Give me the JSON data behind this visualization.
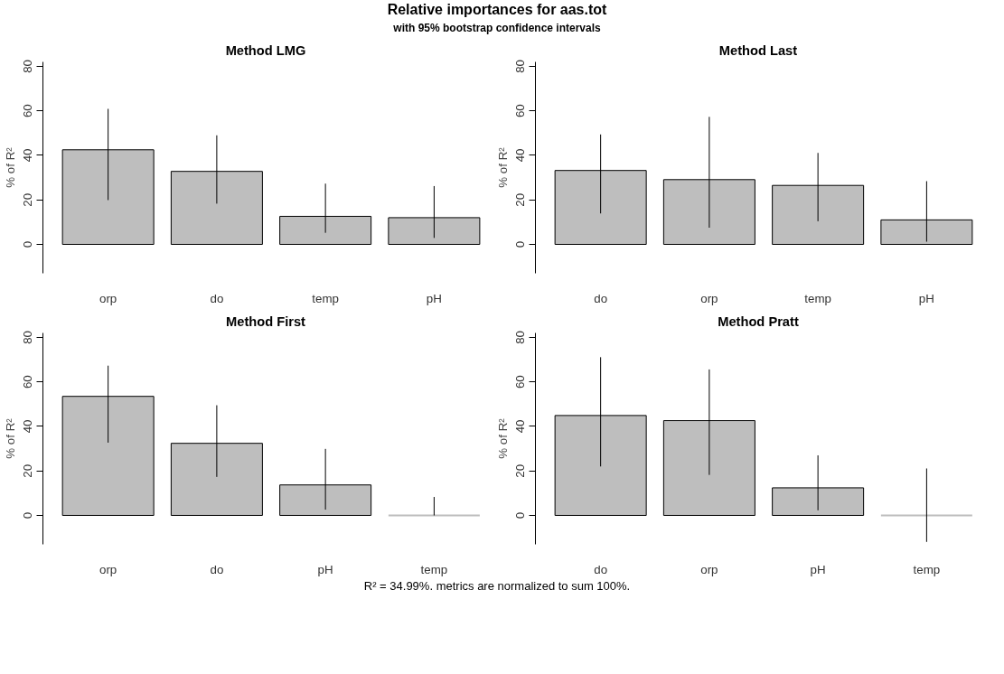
{
  "chart_data": [
    {
      "type": "bar",
      "title": "Method LMG",
      "ylabel": "% of R²",
      "categories": [
        "orp",
        "do",
        "temp",
        "pH"
      ],
      "values": [
        42.5,
        32.8,
        12.6,
        12.0
      ],
      "errors": [
        [
          19.9,
          60.9
        ],
        [
          18.3,
          49.0
        ],
        [
          5.2,
          27.3
        ],
        [
          2.9,
          26.2
        ]
      ],
      "color": "#bebebe",
      "ylim": [
        -13,
        82
      ],
      "yticks": [
        0,
        20,
        40,
        60,
        80
      ],
      "grid": false,
      "annotations": [
        "Relative importances for aas.tot",
        "with 95% bootstrap confidence intervals"
      ]
    },
    {
      "type": "bar",
      "title": "Method Last",
      "ylabel": "% of R²",
      "categories": [
        "do",
        "orp",
        "temp",
        "pH"
      ],
      "values": [
        33.2,
        29.1,
        26.5,
        11.0
      ],
      "errors": [
        [
          13.9,
          49.4
        ],
        [
          7.5,
          57.3
        ],
        [
          10.4,
          41.1
        ],
        [
          1.2,
          28.4
        ]
      ],
      "color": "#bebebe",
      "ylim": [
        -13,
        82
      ],
      "yticks": [
        0,
        20,
        40,
        60,
        80
      ],
      "grid": false
    },
    {
      "type": "bar",
      "title": "Method First",
      "ylabel": "% of R²",
      "categories": [
        "orp",
        "do",
        "pH",
        "temp"
      ],
      "values": [
        53.5,
        32.4,
        13.7,
        0
      ],
      "errors": [
        [
          32.7,
          67.3
        ],
        [
          17.3,
          49.5
        ],
        [
          2.6,
          29.9
        ],
        [
          0,
          8.3
        ]
      ],
      "color": "#bebebe",
      "ylim": [
        -13,
        82
      ],
      "yticks": [
        0,
        20,
        40,
        60,
        80
      ],
      "grid": false
    },
    {
      "type": "bar",
      "title": "Method Pratt",
      "ylabel": "% of R²",
      "categories": [
        "do",
        "orp",
        "pH",
        "temp"
      ],
      "values": [
        44.9,
        42.6,
        12.4,
        0
      ],
      "errors": [
        [
          22.0,
          71.1
        ],
        [
          18.2,
          65.6
        ],
        [
          2.3,
          27.0
        ],
        [
          -11.9,
          21.1
        ]
      ],
      "color": "#bebebe",
      "ylim": [
        -13,
        82
      ],
      "yticks": [
        0,
        20,
        40,
        60,
        80
      ],
      "grid": false,
      "annotations": [
        "R² = 34.99%. metrics are normalized to sum 100%."
      ]
    }
  ]
}
